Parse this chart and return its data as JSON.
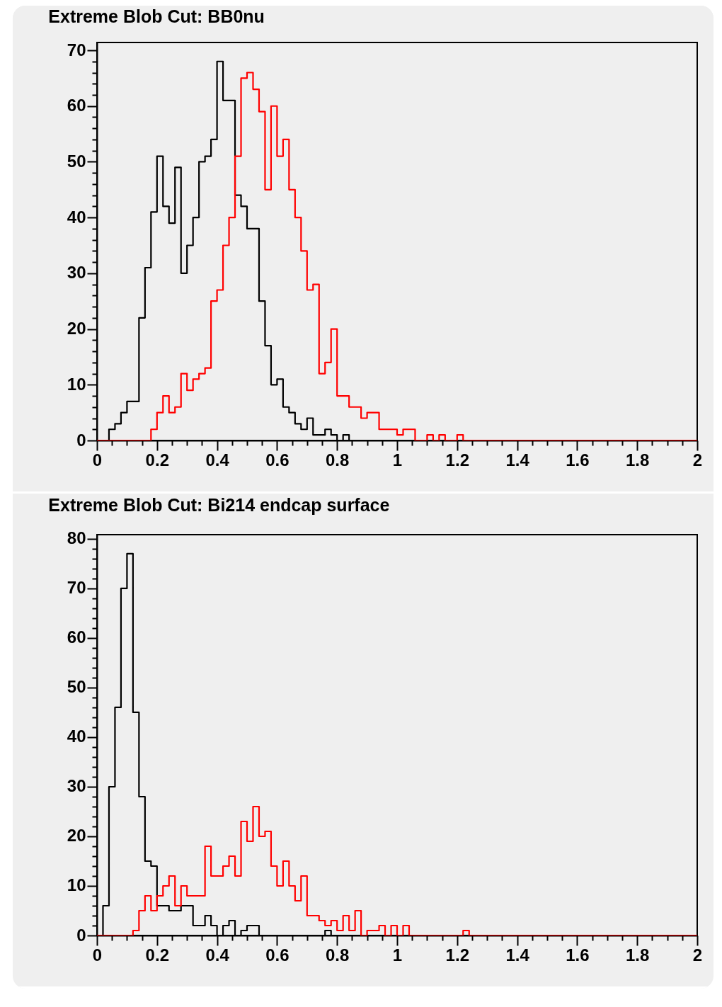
{
  "chart_data": [
    {
      "type": "histogram",
      "title": "Extreme Blob Cut: BB0nu",
      "bins": [
        0,
        0.02,
        0.04,
        0.06,
        0.08,
        0.1,
        0.12,
        0.14,
        0.16,
        0.18,
        0.2,
        0.22,
        0.24,
        0.26,
        0.28,
        0.3,
        0.32,
        0.34,
        0.36,
        0.38,
        0.4,
        0.42,
        0.44,
        0.46,
        0.48,
        0.5,
        0.52,
        0.54,
        0.56,
        0.58,
        0.6,
        0.62,
        0.64,
        0.66,
        0.68,
        0.7,
        0.72,
        0.74,
        0.76,
        0.78,
        0.8,
        0.82,
        0.84,
        0.86,
        0.88,
        0.9,
        0.92,
        0.94,
        0.96,
        0.98,
        1,
        1.02,
        1.04,
        1.06,
        1.08,
        1.1,
        1.12,
        1.14,
        1.16,
        1.18,
        1.2,
        1.22,
        1.24,
        1.26,
        1.28,
        1.3,
        1.32,
        1.34,
        1.36,
        1.38,
        1.4,
        1.42,
        1.44,
        1.46,
        1.48,
        1.5,
        1.52,
        1.54,
        1.56,
        1.58,
        1.6,
        1.62,
        1.64,
        1.66,
        1.68,
        1.7,
        1.72,
        1.74,
        1.76,
        1.78,
        1.8,
        1.82,
        1.84,
        1.86,
        1.88,
        1.9,
        1.92,
        1.94,
        1.96,
        1.98,
        2
      ],
      "series": [
        {
          "color": "#000000",
          "values": [
            0,
            0,
            2,
            3,
            5,
            7,
            7,
            22,
            31,
            41,
            51,
            42,
            39,
            49,
            30,
            35,
            40,
            50,
            51,
            54,
            68,
            61,
            61,
            44,
            42,
            38,
            38,
            25,
            17,
            10,
            11,
            6,
            5,
            3,
            2,
            4,
            1,
            1,
            2,
            1,
            0,
            1,
            0,
            0,
            0,
            0,
            0,
            0,
            0,
            0,
            0,
            0,
            0,
            0,
            0,
            0,
            0,
            0,
            0,
            0,
            0,
            0,
            0,
            0,
            0,
            0,
            0,
            0,
            0,
            0,
            0,
            0,
            0,
            0,
            0,
            0,
            0,
            0,
            0,
            0,
            0,
            0,
            0,
            0,
            0,
            0,
            0,
            0,
            0,
            0,
            0,
            0,
            0,
            0,
            0,
            0,
            0,
            0,
            0,
            0
          ]
        },
        {
          "color": "#ff0000",
          "values": [
            0,
            0,
            0,
            0,
            0,
            0,
            0,
            0,
            0,
            2,
            5,
            8,
            5,
            6,
            12,
            9,
            11,
            12,
            13,
            25,
            27,
            35,
            40,
            51,
            65,
            66,
            63,
            59,
            45,
            60,
            51,
            54,
            45,
            40,
            34,
            27,
            28,
            12,
            14,
            20,
            8,
            8,
            6,
            6,
            4,
            5,
            5,
            2,
            2,
            2,
            1,
            2,
            2,
            0,
            0,
            1,
            0,
            1,
            0,
            0,
            1,
            0,
            0,
            0,
            0,
            0,
            0,
            0,
            0,
            0,
            0,
            0,
            0,
            0,
            0,
            0,
            0,
            0,
            0,
            0,
            0,
            0,
            0,
            0,
            0,
            0,
            0,
            0,
            0,
            0,
            0,
            0,
            0,
            0,
            0,
            0,
            0,
            0,
            0,
            0
          ]
        }
      ],
      "xlim": [
        0,
        2
      ],
      "xticks": [
        0,
        {
          "value": 0.05,
          "label": null
        },
        {
          "value": 0.1,
          "label": null
        },
        {
          "value": 0.15,
          "label": null
        },
        0.2,
        {
          "value": 0.25,
          "label": null
        },
        {
          "value": 0.3,
          "label": null
        },
        {
          "value": 0.35,
          "label": null
        },
        0.4,
        {
          "value": 0.45,
          "label": null
        },
        {
          "value": 0.5,
          "label": null
        },
        {
          "value": 0.55,
          "label": null
        },
        0.6,
        {
          "value": 0.65,
          "label": null
        },
        {
          "value": 0.7,
          "label": null
        },
        {
          "value": 0.75,
          "label": null
        },
        0.8,
        {
          "value": 0.85,
          "label": null
        },
        {
          "value": 0.9,
          "label": null
        },
        {
          "value": 0.95,
          "label": null
        },
        1,
        {
          "value": 1.05,
          "label": null
        },
        {
          "value": 1.1,
          "label": null
        },
        {
          "value": 1.15,
          "label": null
        },
        1.2,
        {
          "value": 1.25,
          "label": null
        },
        {
          "value": 1.3,
          "label": null
        },
        {
          "value": 1.35,
          "label": null
        },
        1.4,
        {
          "value": 1.45,
          "label": null
        },
        {
          "value": 1.5,
          "label": null
        },
        {
          "value": 1.55,
          "label": null
        },
        1.6,
        {
          "value": 1.65,
          "label": null
        },
        {
          "value": 1.7,
          "label": null
        },
        {
          "value": 1.75,
          "label": null
        },
        1.8,
        {
          "value": 1.85,
          "label": null
        },
        {
          "value": 1.9,
          "label": null
        },
        {
          "value": 1.95,
          "label": null
        },
        2
      ],
      "ylim": [
        0,
        71.4
      ],
      "yticks": [
        0,
        {
          "value": 2,
          "label": null
        },
        {
          "value": 4,
          "label": null
        },
        {
          "value": 6,
          "label": null
        },
        {
          "value": 8,
          "label": null
        },
        10,
        {
          "value": 12,
          "label": null
        },
        {
          "value": 14,
          "label": null
        },
        {
          "value": 16,
          "label": null
        },
        {
          "value": 18,
          "label": null
        },
        20,
        {
          "value": 22,
          "label": null
        },
        {
          "value": 24,
          "label": null
        },
        {
          "value": 26,
          "label": null
        },
        {
          "value": 28,
          "label": null
        },
        30,
        {
          "value": 32,
          "label": null
        },
        {
          "value": 34,
          "label": null
        },
        {
          "value": 36,
          "label": null
        },
        {
          "value": 38,
          "label": null
        },
        40,
        {
          "value": 42,
          "label": null
        },
        {
          "value": 44,
          "label": null
        },
        {
          "value": 46,
          "label": null
        },
        {
          "value": 48,
          "label": null
        },
        50,
        {
          "value": 52,
          "label": null
        },
        {
          "value": 54,
          "label": null
        },
        {
          "value": 56,
          "label": null
        },
        {
          "value": 58,
          "label": null
        },
        60,
        {
          "value": 62,
          "label": null
        },
        {
          "value": 64,
          "label": null
        },
        {
          "value": 66,
          "label": null
        },
        {
          "value": 68,
          "label": null
        },
        70
      ]
    },
    {
      "type": "histogram",
      "title": "Extreme Blob Cut: Bi214 endcap surface",
      "bins": [
        0,
        0.02,
        0.04,
        0.06,
        0.08,
        0.1,
        0.12,
        0.14,
        0.16,
        0.18,
        0.2,
        0.22,
        0.24,
        0.26,
        0.28,
        0.3,
        0.32,
        0.34,
        0.36,
        0.38,
        0.4,
        0.42,
        0.44,
        0.46,
        0.48,
        0.5,
        0.52,
        0.54,
        0.56,
        0.58,
        0.6,
        0.62,
        0.64,
        0.66,
        0.68,
        0.7,
        0.72,
        0.74,
        0.76,
        0.78,
        0.8,
        0.82,
        0.84,
        0.86,
        0.88,
        0.9,
        0.92,
        0.94,
        0.96,
        0.98,
        1,
        1.02,
        1.04,
        1.06,
        1.08,
        1.1,
        1.12,
        1.14,
        1.16,
        1.18,
        1.2,
        1.22,
        1.24,
        1.26,
        1.28,
        1.3,
        1.32,
        1.34,
        1.36,
        1.38,
        1.4,
        1.42,
        1.44,
        1.46,
        1.48,
        1.5,
        1.52,
        1.54,
        1.56,
        1.58,
        1.6,
        1.62,
        1.64,
        1.66,
        1.68,
        1.7,
        1.72,
        1.74,
        1.76,
        1.78,
        1.8,
        1.82,
        1.84,
        1.86,
        1.88,
        1.9,
        1.92,
        1.94,
        1.96,
        1.98,
        2
      ],
      "series": [
        {
          "color": "#000000",
          "values": [
            0,
            6,
            30,
            46,
            70,
            77,
            45,
            28,
            15,
            14,
            6,
            6,
            5,
            5,
            6,
            6,
            2,
            2,
            4,
            2,
            0,
            2,
            3,
            0,
            1,
            2,
            2,
            0,
            0,
            0,
            0,
            0,
            0,
            0,
            0,
            0,
            0,
            0,
            1,
            0,
            0,
            0,
            0,
            0,
            0,
            0,
            0,
            0,
            0,
            0,
            0,
            0,
            0,
            0,
            0,
            0,
            0,
            0,
            0,
            0,
            0,
            0,
            0,
            0,
            0,
            0,
            0,
            0,
            0,
            0,
            0,
            0,
            0,
            0,
            0,
            0,
            0,
            0,
            0,
            0,
            0,
            0,
            0,
            0,
            0,
            0,
            0,
            0,
            0,
            0,
            0,
            0,
            0,
            0,
            0,
            0,
            0,
            0,
            0,
            0
          ]
        },
        {
          "color": "#ff0000",
          "values": [
            0,
            0,
            0,
            0,
            0,
            0,
            1,
            5,
            8,
            5,
            8,
            10,
            12,
            6,
            10,
            8,
            8,
            8,
            18,
            12,
            12,
            14,
            16,
            12,
            23,
            19,
            26,
            20,
            21,
            14,
            10,
            15,
            10,
            7,
            12,
            4,
            4,
            3,
            2,
            3,
            1,
            4,
            1,
            5,
            0,
            1,
            1,
            2,
            0,
            2,
            0,
            2,
            0,
            0,
            0,
            0,
            0,
            0,
            0,
            0,
            0,
            1,
            0,
            0,
            0,
            0,
            0,
            0,
            0,
            0,
            0,
            0,
            0,
            0,
            0,
            0,
            0,
            0,
            0,
            0,
            0,
            0,
            0,
            0,
            0,
            0,
            0,
            0,
            0,
            0,
            0,
            0,
            0,
            0,
            0,
            0,
            0,
            0,
            0,
            0
          ]
        }
      ],
      "xlim": [
        0,
        2
      ],
      "xticks": [
        0,
        {
          "value": 0.05,
          "label": null
        },
        {
          "value": 0.1,
          "label": null
        },
        {
          "value": 0.15,
          "label": null
        },
        0.2,
        {
          "value": 0.25,
          "label": null
        },
        {
          "value": 0.3,
          "label": null
        },
        {
          "value": 0.35,
          "label": null
        },
        0.4,
        {
          "value": 0.45,
          "label": null
        },
        {
          "value": 0.5,
          "label": null
        },
        {
          "value": 0.55,
          "label": null
        },
        0.6,
        {
          "value": 0.65,
          "label": null
        },
        {
          "value": 0.7,
          "label": null
        },
        {
          "value": 0.75,
          "label": null
        },
        0.8,
        {
          "value": 0.85,
          "label": null
        },
        {
          "value": 0.9,
          "label": null
        },
        {
          "value": 0.95,
          "label": null
        },
        1,
        {
          "value": 1.05,
          "label": null
        },
        {
          "value": 1.1,
          "label": null
        },
        {
          "value": 1.15,
          "label": null
        },
        1.2,
        {
          "value": 1.25,
          "label": null
        },
        {
          "value": 1.3,
          "label": null
        },
        {
          "value": 1.35,
          "label": null
        },
        1.4,
        {
          "value": 1.45,
          "label": null
        },
        {
          "value": 1.5,
          "label": null
        },
        {
          "value": 1.55,
          "label": null
        },
        1.6,
        {
          "value": 1.65,
          "label": null
        },
        {
          "value": 1.7,
          "label": null
        },
        {
          "value": 1.75,
          "label": null
        },
        1.8,
        {
          "value": 1.85,
          "label": null
        },
        {
          "value": 1.9,
          "label": null
        },
        {
          "value": 1.95,
          "label": null
        },
        2
      ],
      "ylim": [
        0,
        80.85
      ],
      "yticks": [
        0,
        {
          "value": 2,
          "label": null
        },
        {
          "value": 4,
          "label": null
        },
        {
          "value": 6,
          "label": null
        },
        {
          "value": 8,
          "label": null
        },
        10,
        {
          "value": 12,
          "label": null
        },
        {
          "value": 14,
          "label": null
        },
        {
          "value": 16,
          "label": null
        },
        {
          "value": 18,
          "label": null
        },
        20,
        {
          "value": 22,
          "label": null
        },
        {
          "value": 24,
          "label": null
        },
        {
          "value": 26,
          "label": null
        },
        {
          "value": 28,
          "label": null
        },
        30,
        {
          "value": 32,
          "label": null
        },
        {
          "value": 34,
          "label": null
        },
        {
          "value": 36,
          "label": null
        },
        {
          "value": 38,
          "label": null
        },
        40,
        {
          "value": 42,
          "label": null
        },
        {
          "value": 44,
          "label": null
        },
        {
          "value": 46,
          "label": null
        },
        {
          "value": 48,
          "label": null
        },
        50,
        {
          "value": 52,
          "label": null
        },
        {
          "value": 54,
          "label": null
        },
        {
          "value": 56,
          "label": null
        },
        {
          "value": 58,
          "label": null
        },
        60,
        {
          "value": 62,
          "label": null
        },
        {
          "value": 64,
          "label": null
        },
        {
          "value": 66,
          "label": null
        },
        {
          "value": 68,
          "label": null
        },
        70,
        {
          "value": 72,
          "label": null
        },
        {
          "value": 74,
          "label": null
        },
        {
          "value": 76,
          "label": null
        },
        {
          "value": 78,
          "label": null
        },
        80
      ]
    }
  ]
}
